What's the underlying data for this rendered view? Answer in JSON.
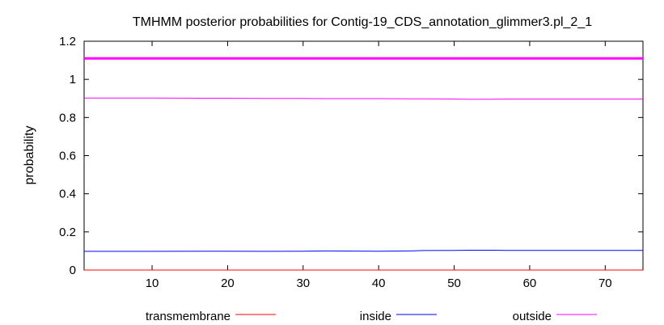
{
  "chart_data": {
    "type": "line",
    "title": "TMHMM posterior probabilities for Contig-19_CDS_annotation_glimmer3.pl_2_1",
    "xlabel": "",
    "ylabel": "probability",
    "xlim": [
      1,
      75
    ],
    "ylim": [
      0,
      1.2
    ],
    "xticks": [
      10,
      20,
      30,
      40,
      50,
      60,
      70
    ],
    "yticks": [
      0,
      0.2,
      0.4,
      0.6,
      0.8,
      1,
      1.2
    ],
    "ytick_labels": [
      "0",
      "0.2",
      "0.4",
      "0.6",
      "0.8",
      "1",
      "1.2"
    ],
    "grid": false,
    "legend_position": "bottom",
    "reference_line": {
      "y": 1.11,
      "color": "#ff00ff"
    },
    "series": [
      {
        "name": "transmembrane",
        "color": "#ff0000",
        "x": [
          1,
          75
        ],
        "y": [
          0,
          0
        ]
      },
      {
        "name": "inside",
        "color": "#0000ff",
        "x": [
          1,
          10,
          20,
          25,
          30,
          33,
          40,
          44,
          46,
          50,
          52,
          55,
          57,
          60,
          70,
          75
        ],
        "y": [
          0.098,
          0.098,
          0.099,
          0.098,
          0.099,
          0.1,
          0.099,
          0.1,
          0.102,
          0.103,
          0.104,
          0.104,
          0.103,
          0.103,
          0.103,
          0.103
        ]
      },
      {
        "name": "outside",
        "color": "#ff00ff",
        "x": [
          1,
          10,
          20,
          25,
          30,
          33,
          40,
          44,
          46,
          50,
          52,
          55,
          57,
          60,
          70,
          75
        ],
        "y": [
          0.902,
          0.902,
          0.901,
          0.9,
          0.9,
          0.899,
          0.899,
          0.898,
          0.898,
          0.897,
          0.896,
          0.896,
          0.897,
          0.897,
          0.897,
          0.897
        ]
      }
    ]
  }
}
